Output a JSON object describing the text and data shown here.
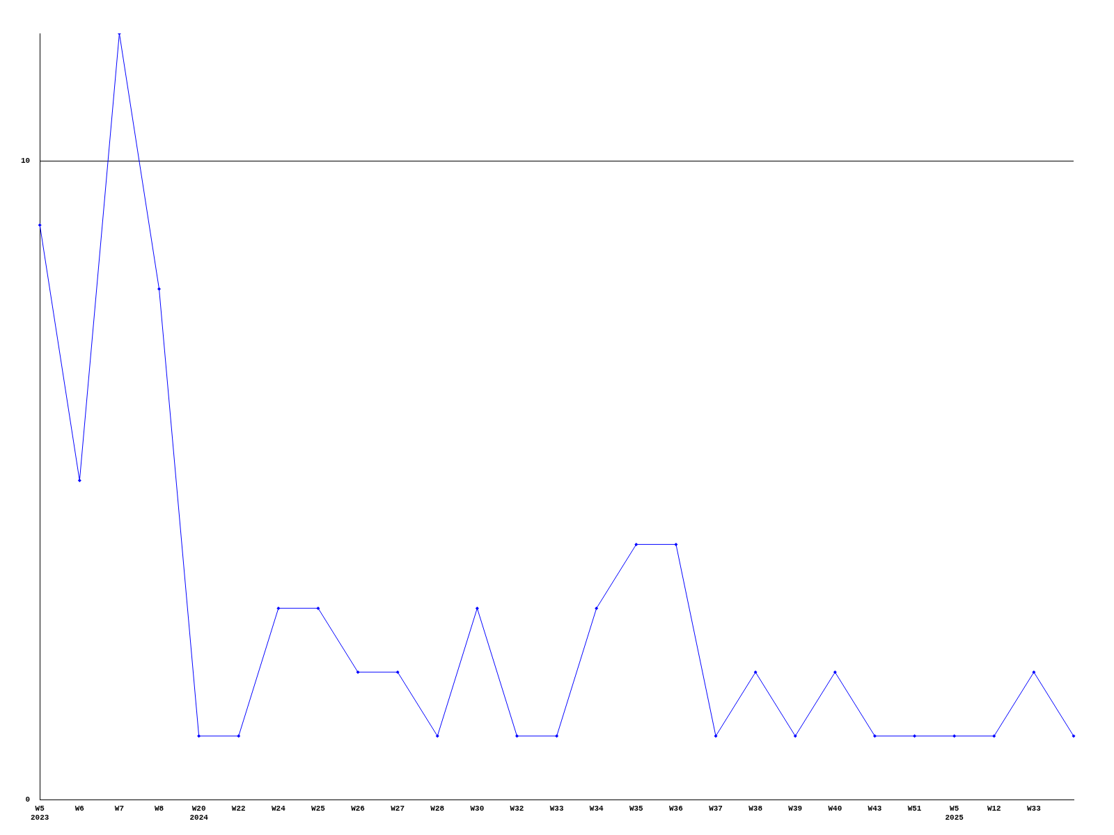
{
  "chart_data": {
    "type": "line",
    "categories": [
      "W5\n2023",
      "W6",
      "W7",
      "W8",
      "W20\n2024",
      "W22",
      "W24",
      "W25",
      "W26",
      "W27",
      "W28",
      "W30",
      "W32",
      "W33",
      "W34",
      "W35",
      "W36",
      "W37",
      "W38",
      "W39",
      "W40",
      "W43",
      "W51",
      "W5\n2025",
      "W12",
      "W33",
      null
    ],
    "series": [
      {
        "color": "#0000ff",
        "values": [
          9,
          5,
          12,
          8,
          1,
          1,
          3,
          3,
          2,
          2,
          1,
          3,
          1,
          1,
          3,
          4,
          4,
          1,
          2,
          1,
          2,
          1,
          1,
          1,
          1,
          2,
          1
        ]
      }
    ],
    "ylim": [
      0,
      12
    ],
    "yticks": [
      0,
      10
    ],
    "grid": "y",
    "legend": false,
    "marker": "diamond",
    "line_style": "solid"
  }
}
